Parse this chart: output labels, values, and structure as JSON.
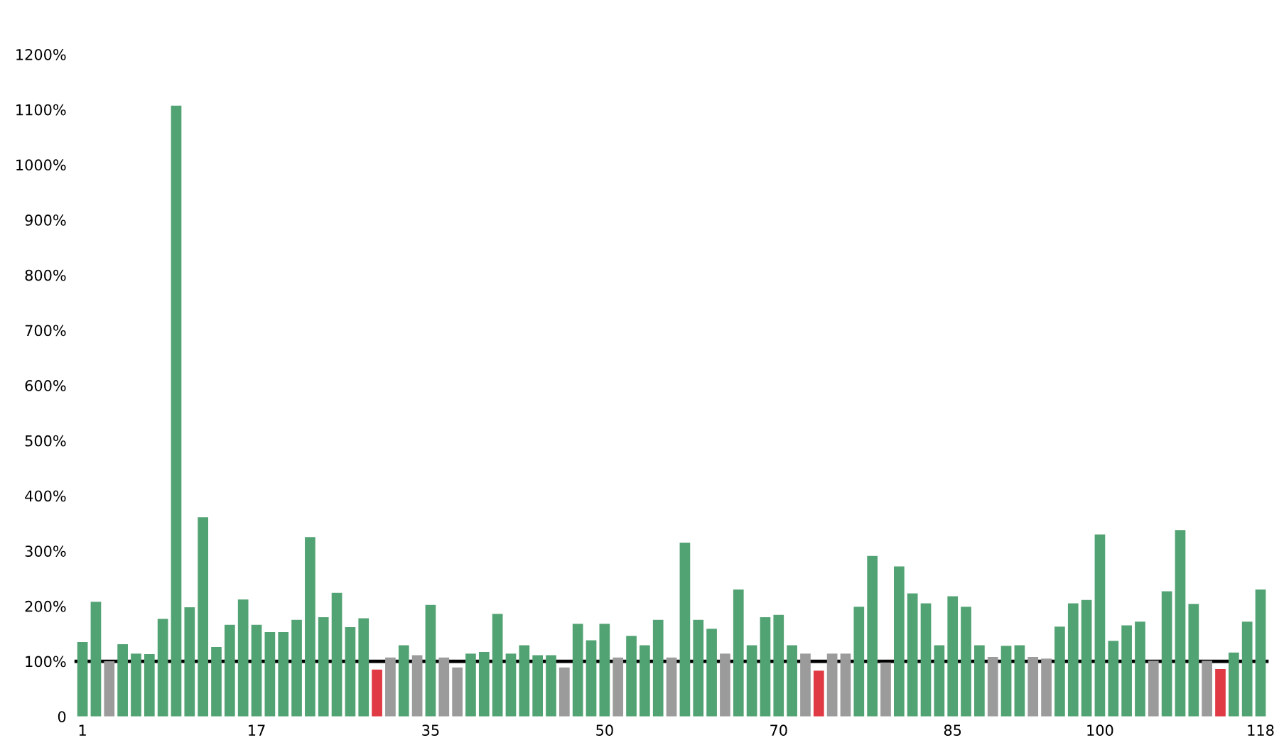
{
  "chart_data": {
    "type": "bar",
    "categories": [
      "1",
      null,
      null,
      null,
      null,
      null,
      null,
      null,
      null,
      null,
      null,
      null,
      null,
      "17",
      null,
      null,
      null,
      null,
      null,
      null,
      null,
      null,
      null,
      null,
      null,
      null,
      "35",
      null,
      null,
      null,
      null,
      null,
      null,
      null,
      null,
      null,
      null,
      null,
      null,
      "50",
      null,
      null,
      null,
      null,
      null,
      null,
      null,
      null,
      null,
      null,
      null,
      null,
      "70",
      null,
      null,
      null,
      null,
      null,
      null,
      null,
      null,
      null,
      null,
      null,
      null,
      "85",
      null,
      null,
      null,
      null,
      null,
      null,
      null,
      null,
      null,
      null,
      "100",
      null,
      null,
      null,
      null,
      null,
      null,
      null,
      null,
      null,
      null,
      null,
      "118"
    ],
    "values": [
      135,
      208,
      100,
      131,
      114,
      113,
      177,
      1107,
      198,
      361,
      126,
      166,
      212,
      166,
      153,
      153,
      175,
      325,
      180,
      224,
      162,
      178,
      85,
      107,
      129,
      111,
      202,
      107,
      89,
      114,
      117,
      186,
      114,
      129,
      111,
      111,
      89,
      168,
      138,
      168,
      107,
      146,
      129,
      175,
      107,
      315,
      175,
      159,
      114,
      230,
      129,
      180,
      184,
      129,
      114,
      83,
      114,
      114,
      199,
      291,
      98,
      272,
      223,
      205,
      129,
      218,
      199,
      129,
      108,
      128,
      129,
      108,
      105,
      163,
      205,
      211,
      330,
      137,
      165,
      172,
      101,
      227,
      338,
      204,
      101,
      86,
      116,
      172,
      230
    ],
    "colors": [
      "#52a373",
      "#52a373",
      "#9b9b9b",
      "#52a373",
      "#52a373",
      "#52a373",
      "#52a373",
      "#52a373",
      "#52a373",
      "#52a373",
      "#52a373",
      "#52a373",
      "#52a373",
      "#52a373",
      "#52a373",
      "#52a373",
      "#52a373",
      "#52a373",
      "#52a373",
      "#52a373",
      "#52a373",
      "#52a373",
      "#e03a45",
      "#9b9b9b",
      "#52a373",
      "#9b9b9b",
      "#52a373",
      "#9b9b9b",
      "#9b9b9b",
      "#52a373",
      "#52a373",
      "#52a373",
      "#52a373",
      "#52a373",
      "#52a373",
      "#52a373",
      "#9b9b9b",
      "#52a373",
      "#52a373",
      "#52a373",
      "#9b9b9b",
      "#52a373",
      "#52a373",
      "#52a373",
      "#9b9b9b",
      "#52a373",
      "#52a373",
      "#52a373",
      "#9b9b9b",
      "#52a373",
      "#52a373",
      "#52a373",
      "#52a373",
      "#52a373",
      "#9b9b9b",
      "#e03a45",
      "#9b9b9b",
      "#9b9b9b",
      "#52a373",
      "#52a373",
      "#9b9b9b",
      "#52a373",
      "#52a373",
      "#52a373",
      "#52a373",
      "#52a373",
      "#52a373",
      "#52a373",
      "#9b9b9b",
      "#52a373",
      "#52a373",
      "#9b9b9b",
      "#9b9b9b",
      "#52a373",
      "#52a373",
      "#52a373",
      "#52a373",
      "#52a373",
      "#52a373",
      "#52a373",
      "#9b9b9b",
      "#52a373",
      "#52a373",
      "#52a373",
      "#9b9b9b",
      "#e03a45",
      "#52a373",
      "#52a373",
      "#52a373"
    ],
    "ylim": [
      0,
      1200
    ],
    "yticks": [
      {
        "value": 0,
        "label": "0"
      },
      {
        "value": 100,
        "label": "100%"
      },
      {
        "value": 200,
        "label": "200%"
      },
      {
        "value": 300,
        "label": "300%"
      },
      {
        "value": 400,
        "label": "400%"
      },
      {
        "value": 500,
        "label": "500%"
      },
      {
        "value": 600,
        "label": "600%"
      },
      {
        "value": 700,
        "label": "700%"
      },
      {
        "value": 800,
        "label": "800%"
      },
      {
        "value": 900,
        "label": "900%"
      },
      {
        "value": 1000,
        "label": "1000%"
      },
      {
        "value": 1100,
        "label": "1100%"
      },
      {
        "value": 1200,
        "label": "1200%"
      }
    ],
    "ref_lines": [
      {
        "axis": "y",
        "value": 100,
        "label": null,
        "color": "#000000",
        "line_style": "solid"
      }
    ],
    "grid": false,
    "legend": false
  }
}
